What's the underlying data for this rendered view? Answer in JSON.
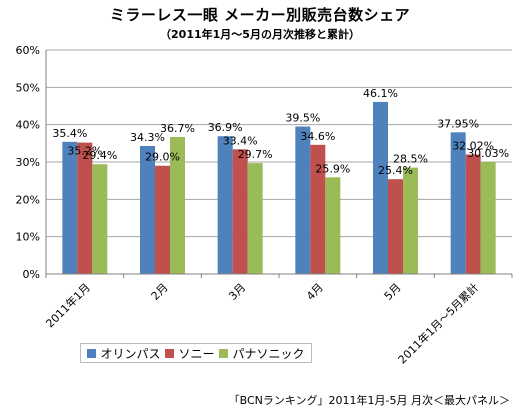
{
  "title": "ミラーレス一眼 メーカー別販売台数シェア",
  "subtitle": "（2011年1月〜5月の月次推移と累計）",
  "source_note": "「BCNランキング」2011年1月-5月 月次＜最大パネル＞",
  "colors": {
    "olympus": "#4f81bd",
    "sony": "#c0504d",
    "panasonic": "#9bbb59"
  },
  "chart_data": {
    "type": "bar",
    "categories": [
      "2011年1月",
      "2月",
      "3月",
      "4月",
      "5月",
      "2011年1月〜5月累計"
    ],
    "series": [
      {
        "name": "オリンパス",
        "values": [
          35.4,
          34.3,
          36.9,
          39.5,
          46.1,
          37.95
        ],
        "labels": [
          "35.4%",
          "34.3%",
          "36.9%",
          "39.5%",
          "46.1%",
          "37.95%"
        ]
      },
      {
        "name": "ソニー",
        "values": [
          35.2,
          29.0,
          33.4,
          34.6,
          25.4,
          32.02
        ],
        "labels": [
          "35.2%",
          "29.0%",
          "33.4%",
          "34.6%",
          "25.4%",
          "32.02%"
        ]
      },
      {
        "name": "パナソニック",
        "values": [
          29.4,
          36.7,
          29.7,
          25.9,
          28.5,
          30.03
        ],
        "labels": [
          "29.4%",
          "36.7%",
          "29.7%",
          "25.9%",
          "28.5%",
          "30.03%"
        ]
      }
    ],
    "yticks": [
      "0%",
      "10%",
      "20%",
      "30%",
      "40%",
      "50%",
      "60%"
    ],
    "ylim": [
      0,
      60
    ],
    "grid": true,
    "legend_position": "bottom-left"
  }
}
